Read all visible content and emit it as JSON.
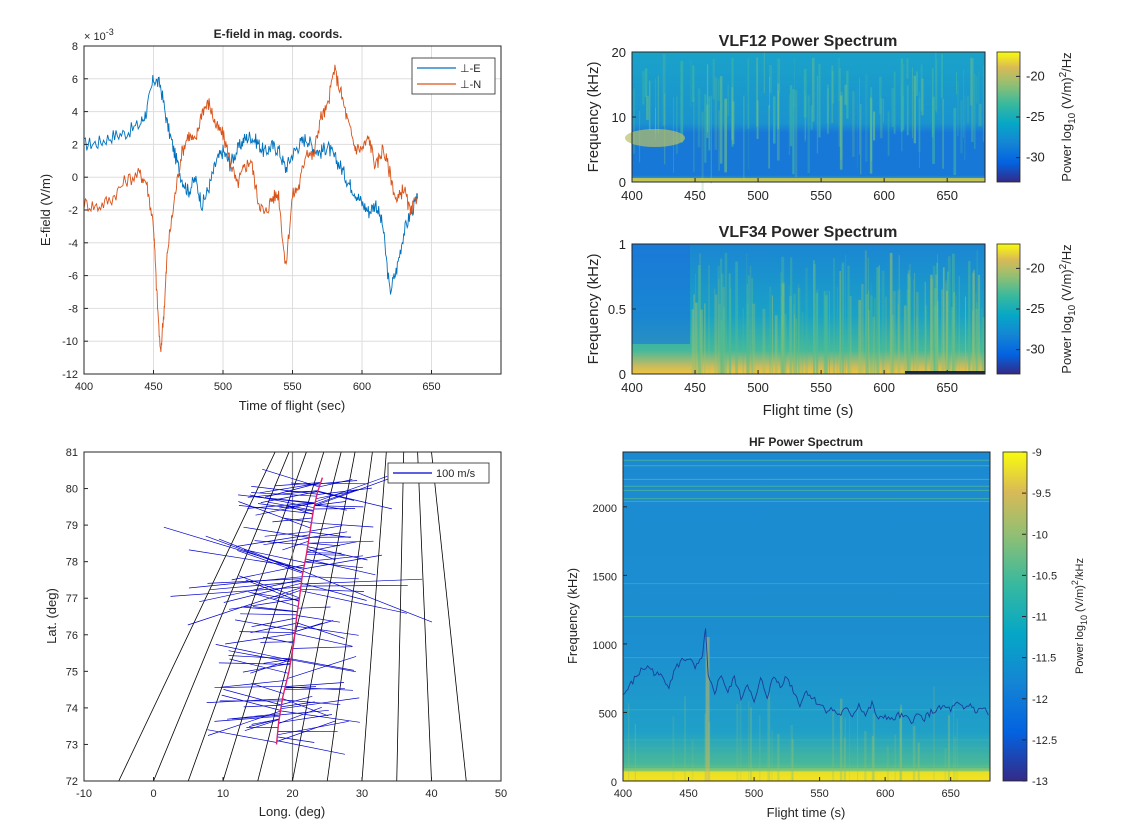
{
  "chart_data": [
    {
      "type": "line",
      "title": "E-field in mag. coords.",
      "xlabel": "Time of flight (sec)",
      "ylabel": "E-field (V/m)",
      "y_exponent": "× 10",
      "y_exponent_power": "-3",
      "xlim": [
        400,
        700
      ],
      "ylim": [
        -12,
        8
      ],
      "xticks": [
        "400",
        "450",
        "500",
        "550",
        "600",
        "650"
      ],
      "yticks": [
        "-12",
        "-10",
        "-8",
        "-6",
        "-4",
        "-2",
        "0",
        "2",
        "4",
        "6",
        "8"
      ],
      "grid": true,
      "legend_position": "top-right",
      "colors": {
        "perp_e": "#0072bd",
        "perp_n": "#d95319"
      },
      "series": [
        {
          "name": "⊥-E",
          "x": [
            400,
            410,
            420,
            430,
            440,
            445,
            450,
            455,
            460,
            465,
            470,
            475,
            480,
            485,
            490,
            495,
            500,
            505,
            510,
            515,
            520,
            525,
            530,
            535,
            540,
            545,
            550,
            555,
            560,
            565,
            570,
            575,
            580,
            585,
            590,
            595,
            600,
            605,
            610,
            615,
            620,
            625,
            630,
            635,
            640
          ],
          "y": [
            2.0,
            2.1,
            2.5,
            2.7,
            3.2,
            4.0,
            6.0,
            5.6,
            3.2,
            1.5,
            0.0,
            -0.9,
            -0.1,
            -1.7,
            -0.6,
            0.9,
            1.6,
            0.8,
            1.6,
            2.3,
            2.5,
            2.1,
            1.5,
            1.9,
            1.7,
            0.5,
            1.4,
            2.0,
            2.4,
            1.8,
            1.5,
            1.9,
            1.2,
            0.6,
            -0.3,
            -0.9,
            -1.6,
            -2.1,
            -1.6,
            -3.0,
            -7.0,
            -5.6,
            -3.4,
            -2.2,
            -1.3
          ]
        },
        {
          "name": "⊥-N",
          "x": [
            400,
            410,
            420,
            430,
            440,
            445,
            450,
            452,
            455,
            458,
            460,
            465,
            470,
            475,
            480,
            485,
            490,
            495,
            500,
            505,
            510,
            515,
            520,
            525,
            530,
            535,
            540,
            545,
            550,
            555,
            560,
            565,
            570,
            575,
            580,
            585,
            590,
            595,
            600,
            605,
            610,
            615,
            620,
            625,
            630,
            635,
            640
          ],
          "y": [
            -1.6,
            -1.8,
            -1.3,
            -0.2,
            0.2,
            -0.3,
            -2.9,
            -6.5,
            -10.8,
            -7.6,
            -4.5,
            -1.4,
            1.4,
            2.6,
            2.1,
            4.1,
            4.5,
            3.1,
            2.6,
            1.1,
            -0.5,
            0.5,
            1.1,
            -1.3,
            -2.3,
            -1.3,
            -1.0,
            -5.6,
            -1.1,
            -0.5,
            1.7,
            1.2,
            3.6,
            4.2,
            6.6,
            5.1,
            3.3,
            1.8,
            1.7,
            2.4,
            0.6,
            1.8,
            0.3,
            -1.6,
            -0.6,
            -2.3,
            -1.0
          ]
        }
      ]
    },
    {
      "type": "heatmap",
      "title": "VLF12 Power Spectrum",
      "xlabel": "",
      "ylabel": "Frequency (kHz)",
      "xlim": [
        400,
        680
      ],
      "ylim": [
        0,
        20
      ],
      "xticks": [
        "400",
        "450",
        "500",
        "550",
        "600",
        "650"
      ],
      "yticks": [
        "0",
        "10",
        "20"
      ],
      "colorbar": {
        "label": "Power log",
        "label_sub": "10",
        "label_tail": " (V/m)",
        "label_sup": "2",
        "label_end": "/Hz",
        "ticks": [
          "-20",
          "-25",
          "-30"
        ],
        "range": [
          -33,
          -17
        ]
      }
    },
    {
      "type": "heatmap",
      "title": "VLF34 Power Spectrum",
      "xlabel": "Flight time (s)",
      "ylabel": "Frequency (kHz)",
      "xlim": [
        400,
        680
      ],
      "ylim": [
        0,
        1
      ],
      "xticks": [
        "400",
        "450",
        "500",
        "550",
        "600",
        "650"
      ],
      "yticks": [
        "0",
        "0.5",
        "1"
      ],
      "colorbar": {
        "label": "Power log",
        "label_sub": "10",
        "label_tail": " (V/m)",
        "label_sup": "2",
        "label_end": "/Hz",
        "ticks": [
          "-20",
          "-25",
          "-30"
        ],
        "range": [
          -33,
          -17
        ]
      }
    },
    {
      "type": "line",
      "title": "",
      "xlabel": "Long. (deg)",
      "ylabel": "Lat. (deg)",
      "xlim": [
        -10,
        50
      ],
      "ylim": [
        72,
        81
      ],
      "xticks": [
        "-10",
        "0",
        "10",
        "20",
        "30",
        "40",
        "50"
      ],
      "yticks": [
        "72",
        "73",
        "74",
        "75",
        "76",
        "77",
        "78",
        "79",
        "80",
        "81"
      ],
      "grid": false,
      "legend_position": "top-right",
      "legend": [
        "100 m/s"
      ],
      "meridian_longitudes_at_bottom": [
        -5,
        0,
        5,
        10,
        15,
        20,
        25,
        30,
        35,
        40,
        45
      ],
      "meridian_longitudes_at_top": [
        17.5,
        19.5,
        22,
        24.5,
        27,
        29,
        31.5,
        33.5,
        36,
        38,
        40
      ],
      "trajectory": {
        "lon": [
          17.7,
          18.0,
          18.6,
          19.5,
          20.2,
          20.6,
          21.0,
          21.4,
          22.0,
          22.5,
          23.0,
          23.6,
          24.3
        ],
        "lat": [
          73.0,
          73.6,
          74.3,
          75.0,
          75.8,
          76.5,
          77.0,
          77.6,
          78.2,
          78.8,
          79.4,
          79.9,
          80.3
        ]
      }
    },
    {
      "type": "heatmap",
      "title": "HF Power Spectrum",
      "xlabel": "Flight time (s)",
      "ylabel": "Frequency (kHz)",
      "xlim": [
        400,
        680
      ],
      "ylim": [
        0,
        2400
      ],
      "xticks": [
        "400",
        "450",
        "500",
        "550",
        "600",
        "650"
      ],
      "yticks": [
        "0",
        "500",
        "1000",
        "1500",
        "2000"
      ],
      "trace": {
        "x": [
          400,
          405,
          410,
          415,
          420,
          425,
          430,
          435,
          440,
          445,
          450,
          455,
          460,
          463,
          465,
          470,
          475,
          480,
          485,
          490,
          495,
          500,
          505,
          510,
          515,
          520,
          525,
          530,
          535,
          540,
          545,
          550,
          555,
          560,
          565,
          570,
          575,
          580,
          585,
          590,
          595,
          600,
          605,
          610,
          615,
          620,
          625,
          630,
          635,
          640,
          645,
          650,
          655,
          660,
          665,
          670,
          675,
          680
        ],
        "y": [
          620,
          690,
          760,
          820,
          830,
          780,
          760,
          700,
          820,
          880,
          900,
          820,
          880,
          1100,
          750,
          650,
          780,
          640,
          760,
          600,
          720,
          560,
          740,
          620,
          760,
          700,
          760,
          660,
          560,
          660,
          600,
          560,
          520,
          520,
          480,
          520,
          480,
          560,
          480,
          560,
          440,
          480,
          440,
          480,
          460,
          440,
          480,
          460,
          500,
          520,
          540,
          520,
          560,
          520,
          560,
          500,
          540,
          460
        ]
      },
      "colorbar": {
        "label": "Power log",
        "label_sub": "10",
        "label_tail": " (V/m)",
        "label_sup": "2",
        "label_end": "/kHz",
        "ticks": [
          "-9",
          "-9.5",
          "-10",
          "-10.5",
          "-11",
          "-11.5",
          "-12",
          "-12.5",
          "-13"
        ],
        "range": [
          -13,
          -9
        ]
      }
    }
  ]
}
